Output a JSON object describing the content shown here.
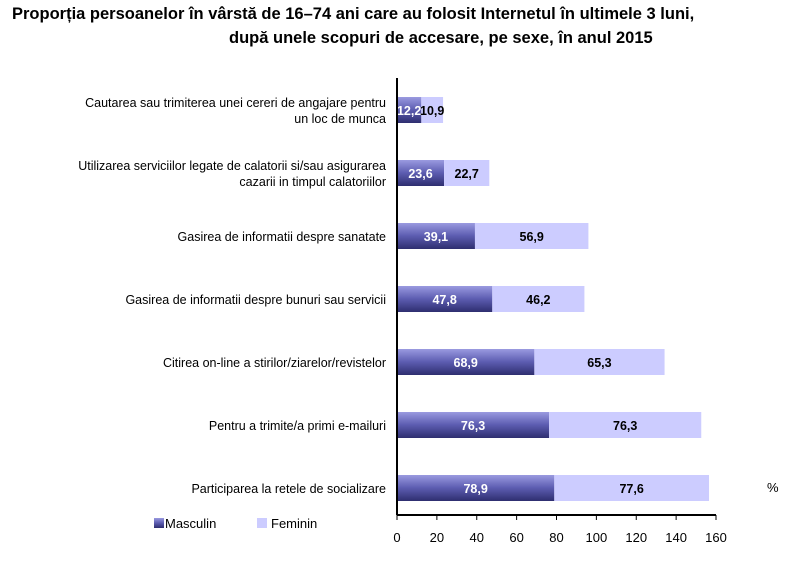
{
  "chart_data": {
    "type": "bar",
    "orientation": "horizontal",
    "stacked": true,
    "title": [
      "Proporția persoanelor în vârstă de 16–74 ani care au folosit Internetul în ultimele 3 luni,",
      "după unele scopuri de accesare, pe sexe,  în anul 2015"
    ],
    "categories": [
      [
        "Cautarea sau trimiterea unei cereri de angajare pentru",
        "un loc de munca"
      ],
      [
        "Utilizarea serviciilor legate de calatorii si/sau asigurarea",
        "cazarii in timpul calatoriilor"
      ],
      [
        "Gasirea de informatii despre sanatate"
      ],
      [
        "Gasirea de informatii despre bunuri sau servicii"
      ],
      [
        "Citirea on-line a stirilor/ziarelor/revistelor"
      ],
      [
        "Pentru a trimite/a primi e-mailuri"
      ],
      [
        "Participarea la retele de socializare"
      ]
    ],
    "series": [
      {
        "name": "Masculin",
        "color": "#5a5aa8",
        "values": [
          12.2,
          23.6,
          39.1,
          47.8,
          68.9,
          76.3,
          78.9
        ],
        "labels": [
          "12,2",
          "23,6",
          "39,1",
          "47,8",
          "68,9",
          "76,3",
          "78,9"
        ]
      },
      {
        "name": "Feminin",
        "color": "#ccccff",
        "values": [
          10.9,
          22.7,
          56.9,
          46.2,
          65.3,
          76.3,
          77.6
        ],
        "labels": [
          "10,9",
          "22,7",
          "56,9",
          "46,2",
          "65,3",
          "76,3",
          "77,6"
        ]
      }
    ],
    "xlim": [
      0,
      160
    ],
    "xticks": [
      "0",
      "20",
      "40",
      "60",
      "80",
      "100",
      "120",
      "140",
      "160"
    ],
    "unit": "%",
    "legend": "bottom-left",
    "grid": false
  }
}
